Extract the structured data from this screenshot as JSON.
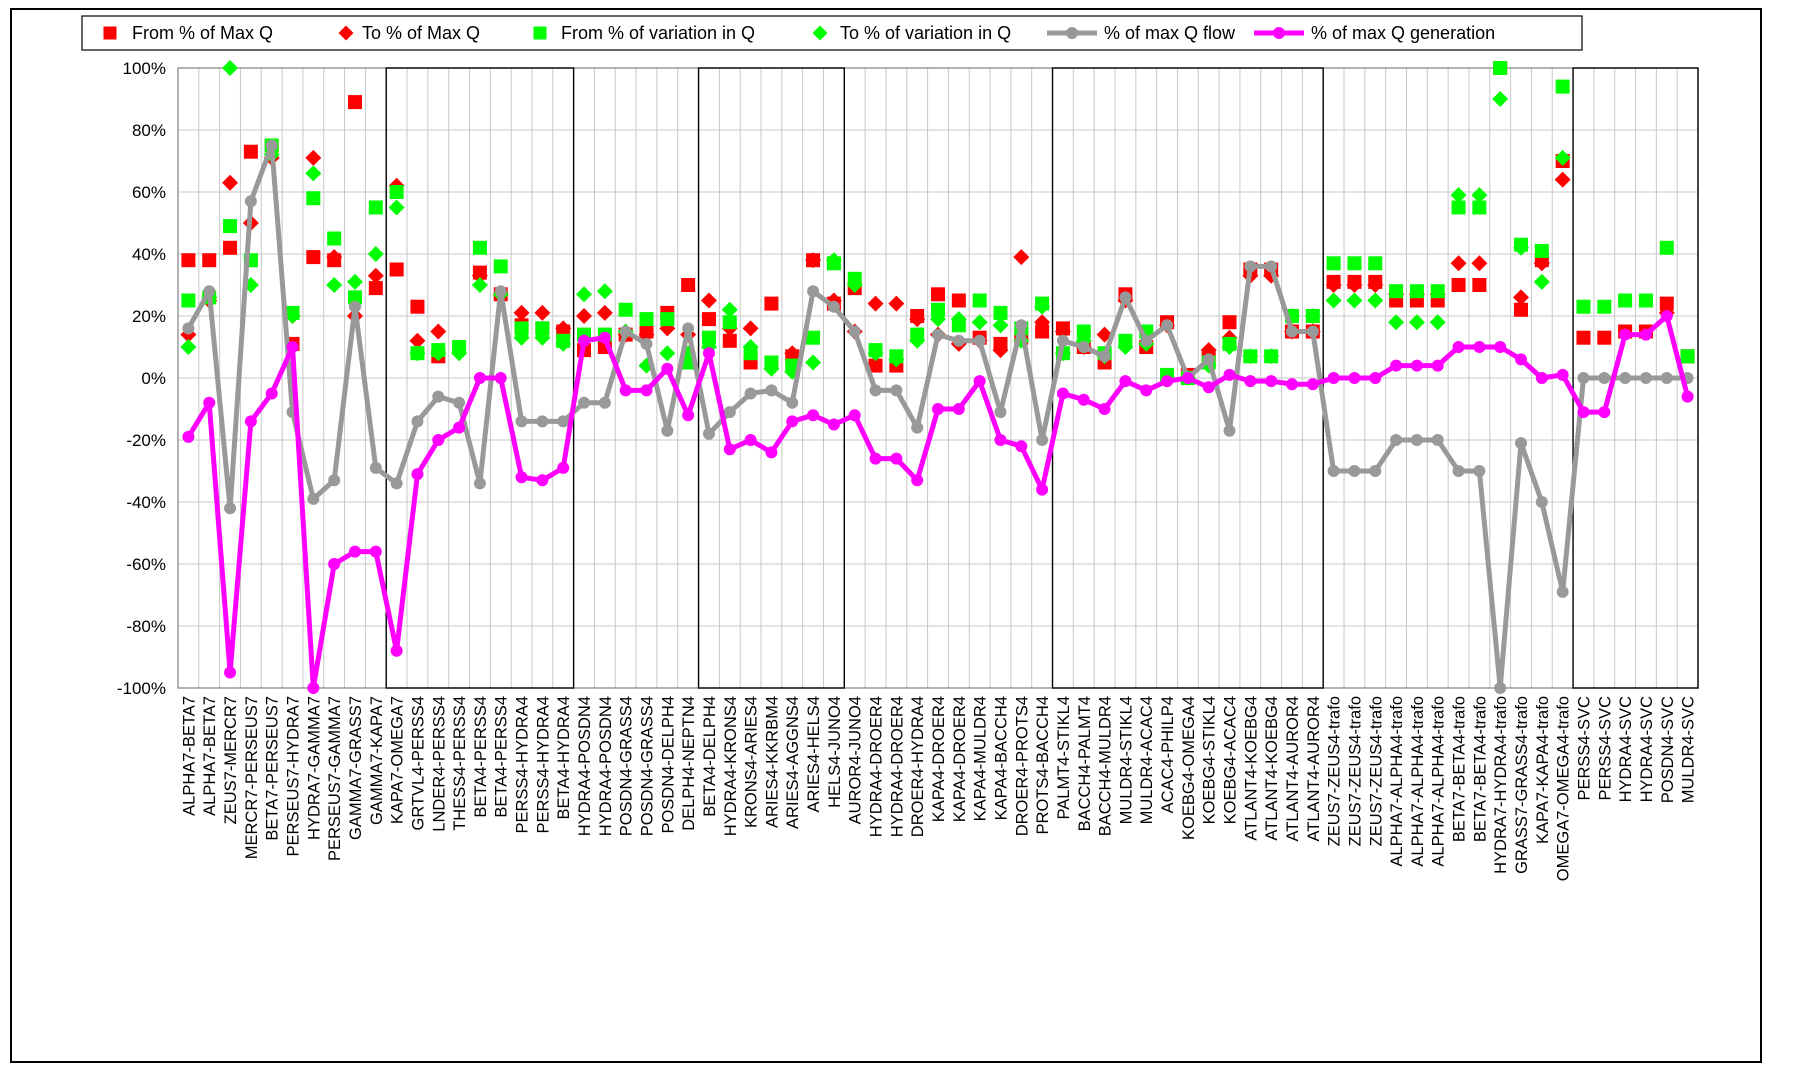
{
  "chart_data": {
    "type": "line",
    "title": "",
    "xlabel": "",
    "ylabel": "",
    "ylim": [
      -100,
      100
    ],
    "yticks": [
      "100%",
      "80%",
      "60%",
      "40%",
      "20%",
      "0%",
      "-20%",
      "-40%",
      "-60%",
      "-80%",
      "-100%"
    ],
    "grid": true,
    "legend_position": "top",
    "colors": {
      "from_max": "#ff0000",
      "to_max": "#ff0000",
      "from_var": "#00ff00",
      "to_var": "#00ff00",
      "flow": "#999999",
      "gen": "#ff00ff"
    },
    "categories": [
      "ALPHA7-BETA7",
      "ALPHA7-BETA7",
      "ZEUS7-MERCR7",
      "MERCR7-PERSEUS7",
      "BETA7-PERSEUS7",
      "PERSEUS7-HYDRA7",
      "HYDRA7-GAMMA7",
      "PERSEUS7-GAMMA7",
      "GAMMA7-GRASS7",
      "GAMMA7-KAPA7",
      "KAPA7-OMEGA7",
      "GRTVL4-PERSS4",
      "LNDER4-PERSS4",
      "THESS4-PERSS4",
      "BETA4-PERSS4",
      "BETA4-PERSS4",
      "PERSS4-HYDRA4",
      "PERSS4-HYDRA4",
      "BETA4-HYDRA4",
      "HYDRA4-POSDN4",
      "HYDRA4-POSDN4",
      "POSDN4-GRASS4",
      "POSDN4-GRASS4",
      "POSDN4-DELPH4",
      "DELPH4-NEPTN4",
      "BETA4-DELPH4",
      "HYDRA4-KRONS4",
      "KRONS4-ARIES4",
      "ARIES4-KKRBM4",
      "ARIES4-AGGNS4",
      "ARIES4-HELS4",
      "HELS4-JUNO4",
      "AUROR4-JUNO4",
      "HYDRA4-DROER4",
      "HYDRA4-DROER4",
      "DROER4-HYDRA4",
      "KAPA4-DROER4",
      "KAPA4-DROER4",
      "KAPA4-MULDR4",
      "KAPA4-BACCH4",
      "DROER4-PROTS4",
      "PROTS4-BACCH4",
      "PALMT4-STIKL4",
      "BACCH4-PALMT4",
      "BACCH4-MULDR4",
      "MULDR4-STIKL4",
      "MULDR4-ACAC4",
      "ACAC4-PHILP4",
      "KOEBG4-OMEGA4",
      "KOEBG4-STIKL4",
      "KOEBG4-ACAC4",
      "ATLANT4-KOEBG4",
      "ATLANT4-KOEBG4",
      "ATLANT4-AUROR4",
      "ATLANT4-AUROR4",
      "ZEUS7-ZEUS4-trafo",
      "ZEUS7-ZEUS4-trafo",
      "ZEUS7-ZEUS4-trafo",
      "ALPHA7-ALPHA4-trafo",
      "ALPHA7-ALPHA4-trafo",
      "ALPHA7-ALPHA4-trafo",
      "BETA7-BETA4-trafo",
      "BETA7-BETA4-trafo",
      "HYDRA7-HYDRA4-trafo",
      "GRASS7-GRASS4-trafo",
      "KAPA7-KAPA4-trafo",
      "OMEGA7-OMEGA4-trafo",
      "PERSS4-SVC",
      "PERSS4-SVC",
      "HYDRA4-SVC",
      "HYDRA4-SVC",
      "POSDN4-SVC",
      "MULDR4-SVC"
    ],
    "group_boxes": [
      [
        10,
        18
      ],
      [
        25,
        31
      ],
      [
        42,
        54
      ],
      [
        67,
        72
      ]
    ],
    "series": [
      {
        "name": "From % of Max Q",
        "marker": "square",
        "values": [
          38,
          38,
          42,
          73,
          75,
          11,
          39,
          38,
          89,
          29,
          35,
          23,
          7,
          null,
          34,
          27,
          17,
          16,
          15,
          9,
          10,
          14,
          15,
          21,
          30,
          19,
          12,
          5,
          24,
          7,
          38,
          24,
          29,
          4,
          4,
          20,
          27,
          25,
          13,
          11,
          13,
          15,
          16,
          10,
          5,
          27,
          10,
          18,
          1,
          7,
          18,
          35,
          35,
          15,
          15,
          31,
          31,
          31,
          25,
          25,
          25,
          30,
          30,
          100,
          22,
          38,
          70,
          13,
          13,
          15,
          15,
          24,
          7
        ]
      },
      {
        "name": "To % of Max Q",
        "marker": "diamond",
        "values": [
          14,
          25,
          63,
          50,
          71,
          20,
          71,
          39,
          20,
          33,
          62,
          12,
          15,
          null,
          33,
          27,
          21,
          21,
          16,
          20,
          21,
          14,
          14,
          16,
          14,
          25,
          16,
          16,
          null,
          8,
          38,
          25,
          15,
          24,
          24,
          19,
          14,
          11,
          12,
          9,
          39,
          18,
          15,
          10,
          14,
          25,
          11,
          17,
          null,
          9,
          13,
          33,
          33,
          15,
          15,
          30,
          30,
          30,
          27,
          27,
          27,
          37,
          37,
          null,
          26,
          37,
          64,
          null,
          null,
          null,
          null,
          21,
          null
        ]
      },
      {
        "name": "From % of variation in Q",
        "marker": "square",
        "values": [
          25,
          26,
          49,
          38,
          75,
          21,
          58,
          45,
          26,
          55,
          60,
          8,
          9,
          10,
          42,
          36,
          16,
          16,
          12,
          14,
          14,
          22,
          19,
          19,
          5,
          13,
          18,
          8,
          5,
          4,
          13,
          37,
          32,
          9,
          7,
          14,
          22,
          17,
          25,
          21,
          16,
          24,
          8,
          15,
          8,
          12,
          15,
          1,
          0,
          5,
          11,
          7,
          7,
          20,
          20,
          37,
          37,
          37,
          28,
          28,
          28,
          55,
          55,
          100,
          43,
          41,
          94,
          23,
          23,
          25,
          25,
          42,
          7
        ]
      },
      {
        "name": "To % of variation in Q",
        "marker": "diamond",
        "values": [
          10,
          26,
          100,
          30,
          72,
          20,
          66,
          30,
          31,
          40,
          55,
          8,
          8,
          8,
          30,
          27,
          13,
          13,
          11,
          27,
          28,
          15,
          4,
          8,
          8,
          10,
          22,
          10,
          3,
          2,
          5,
          38,
          30,
          8,
          6,
          12,
          19,
          19,
          18,
          17,
          12,
          23,
          8,
          12,
          7,
          10,
          11,
          null,
          0,
          4,
          10,
          7,
          7,
          20,
          20,
          25,
          25,
          25,
          18,
          18,
          18,
          59,
          59,
          90,
          42,
          31,
          71,
          null,
          null,
          null,
          null,
          null,
          null
        ]
      },
      {
        "name": "% of max Q flow",
        "marker": "circle",
        "line": true,
        "values": [
          16,
          28,
          -42,
          57,
          75,
          -11,
          -39,
          -33,
          23,
          -29,
          -34,
          -14,
          -6,
          -8,
          -34,
          28,
          -14,
          -14,
          -14,
          -8,
          -8,
          15,
          11,
          -17,
          16,
          -18,
          -11,
          -5,
          -4,
          -8,
          28,
          23,
          15,
          -4,
          -4,
          -16,
          14,
          12,
          12,
          -11,
          17,
          -20,
          12,
          10,
          7,
          26,
          12,
          17,
          0,
          6,
          -17,
          36,
          36,
          15,
          15,
          -30,
          -30,
          -30,
          -20,
          -20,
          -20,
          -30,
          -30,
          -100,
          -21,
          -40,
          -69,
          0,
          0,
          0,
          0,
          0,
          0
        ]
      },
      {
        "name": "% of max Q generation",
        "marker": "circle",
        "line": true,
        "values": [
          -19,
          -8,
          -95,
          -14,
          -5,
          10,
          -100,
          -60,
          -56,
          -56,
          -88,
          -31,
          -20,
          -16,
          0,
          0,
          -32,
          -33,
          -29,
          12,
          13,
          -4,
          -4,
          3,
          -12,
          8,
          -23,
          -20,
          -24,
          -14,
          -12,
          -15,
          -12,
          -26,
          -26,
          -33,
          -10,
          -10,
          -1,
          -20,
          -22,
          -36,
          -5,
          -7,
          -10,
          -1,
          -4,
          -1,
          0,
          -3,
          1,
          -1,
          -1,
          -2,
          -2,
          0,
          0,
          0,
          4,
          4,
          4,
          10,
          10,
          10,
          6,
          0,
          1,
          -11,
          -11,
          14,
          14,
          20,
          -6
        ]
      }
    ]
  }
}
